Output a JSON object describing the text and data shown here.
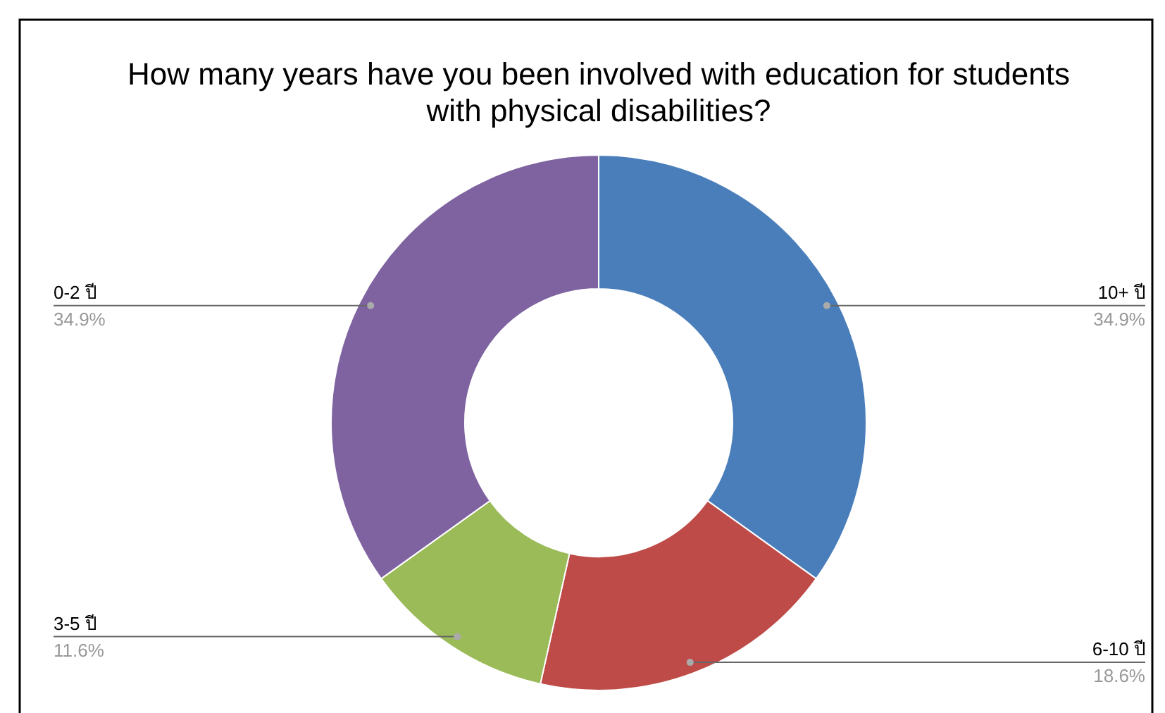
{
  "chart_data": {
    "type": "donut",
    "title": "How many years have you been involved with education for students with physical disabilities?",
    "categories": [
      "10+ ปี",
      "6-10 ปี",
      "3-5 ปี",
      "0-2 ปี"
    ],
    "values": [
      34.9,
      18.6,
      11.6,
      34.9
    ],
    "colors": [
      "#4a7ebb",
      "#be4b48",
      "#9bbb59",
      "#7f63a0"
    ],
    "value_labels": [
      "34.9%",
      "18.6%",
      "11.6%",
      "34.9%"
    ]
  }
}
